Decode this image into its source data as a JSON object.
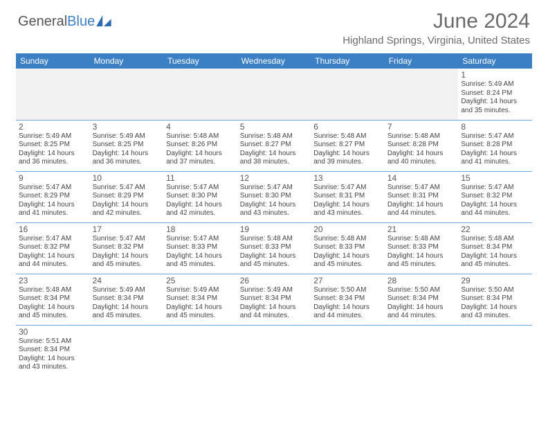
{
  "logo": {
    "text1": "General",
    "text2": "Blue"
  },
  "title": "June 2024",
  "location": "Highland Springs, Virginia, United States",
  "colors": {
    "header_bg": "#3b7fc4",
    "header_text": "#ffffff",
    "divider": "#6fa4d6",
    "blank_bg": "#f2f2f2",
    "text": "#444444",
    "title_text": "#6a6a6a"
  },
  "weekdays": [
    "Sunday",
    "Monday",
    "Tuesday",
    "Wednesday",
    "Thursday",
    "Friday",
    "Saturday"
  ],
  "days": {
    "1": {
      "sunrise": "5:49 AM",
      "sunset": "8:24 PM",
      "daylight": "14 hours and 35 minutes."
    },
    "2": {
      "sunrise": "5:49 AM",
      "sunset": "8:25 PM",
      "daylight": "14 hours and 36 minutes."
    },
    "3": {
      "sunrise": "5:49 AM",
      "sunset": "8:25 PM",
      "daylight": "14 hours and 36 minutes."
    },
    "4": {
      "sunrise": "5:48 AM",
      "sunset": "8:26 PM",
      "daylight": "14 hours and 37 minutes."
    },
    "5": {
      "sunrise": "5:48 AM",
      "sunset": "8:27 PM",
      "daylight": "14 hours and 38 minutes."
    },
    "6": {
      "sunrise": "5:48 AM",
      "sunset": "8:27 PM",
      "daylight": "14 hours and 39 minutes."
    },
    "7": {
      "sunrise": "5:48 AM",
      "sunset": "8:28 PM",
      "daylight": "14 hours and 40 minutes."
    },
    "8": {
      "sunrise": "5:47 AM",
      "sunset": "8:28 PM",
      "daylight": "14 hours and 41 minutes."
    },
    "9": {
      "sunrise": "5:47 AM",
      "sunset": "8:29 PM",
      "daylight": "14 hours and 41 minutes."
    },
    "10": {
      "sunrise": "5:47 AM",
      "sunset": "8:29 PM",
      "daylight": "14 hours and 42 minutes."
    },
    "11": {
      "sunrise": "5:47 AM",
      "sunset": "8:30 PM",
      "daylight": "14 hours and 42 minutes."
    },
    "12": {
      "sunrise": "5:47 AM",
      "sunset": "8:30 PM",
      "daylight": "14 hours and 43 minutes."
    },
    "13": {
      "sunrise": "5:47 AM",
      "sunset": "8:31 PM",
      "daylight": "14 hours and 43 minutes."
    },
    "14": {
      "sunrise": "5:47 AM",
      "sunset": "8:31 PM",
      "daylight": "14 hours and 44 minutes."
    },
    "15": {
      "sunrise": "5:47 AM",
      "sunset": "8:32 PM",
      "daylight": "14 hours and 44 minutes."
    },
    "16": {
      "sunrise": "5:47 AM",
      "sunset": "8:32 PM",
      "daylight": "14 hours and 44 minutes."
    },
    "17": {
      "sunrise": "5:47 AM",
      "sunset": "8:32 PM",
      "daylight": "14 hours and 45 minutes."
    },
    "18": {
      "sunrise": "5:47 AM",
      "sunset": "8:33 PM",
      "daylight": "14 hours and 45 minutes."
    },
    "19": {
      "sunrise": "5:48 AM",
      "sunset": "8:33 PM",
      "daylight": "14 hours and 45 minutes."
    },
    "20": {
      "sunrise": "5:48 AM",
      "sunset": "8:33 PM",
      "daylight": "14 hours and 45 minutes."
    },
    "21": {
      "sunrise": "5:48 AM",
      "sunset": "8:33 PM",
      "daylight": "14 hours and 45 minutes."
    },
    "22": {
      "sunrise": "5:48 AM",
      "sunset": "8:34 PM",
      "daylight": "14 hours and 45 minutes."
    },
    "23": {
      "sunrise": "5:48 AM",
      "sunset": "8:34 PM",
      "daylight": "14 hours and 45 minutes."
    },
    "24": {
      "sunrise": "5:49 AM",
      "sunset": "8:34 PM",
      "daylight": "14 hours and 45 minutes."
    },
    "25": {
      "sunrise": "5:49 AM",
      "sunset": "8:34 PM",
      "daylight": "14 hours and 45 minutes."
    },
    "26": {
      "sunrise": "5:49 AM",
      "sunset": "8:34 PM",
      "daylight": "14 hours and 44 minutes."
    },
    "27": {
      "sunrise": "5:50 AM",
      "sunset": "8:34 PM",
      "daylight": "14 hours and 44 minutes."
    },
    "28": {
      "sunrise": "5:50 AM",
      "sunset": "8:34 PM",
      "daylight": "14 hours and 44 minutes."
    },
    "29": {
      "sunrise": "5:50 AM",
      "sunset": "8:34 PM",
      "daylight": "14 hours and 43 minutes."
    },
    "30": {
      "sunrise": "5:51 AM",
      "sunset": "8:34 PM",
      "daylight": "14 hours and 43 minutes."
    }
  },
  "labels": {
    "sunrise": "Sunrise: ",
    "sunset": "Sunset: ",
    "daylight": "Daylight: "
  },
  "layout": [
    [
      null,
      null,
      null,
      null,
      null,
      null,
      "1"
    ],
    [
      "2",
      "3",
      "4",
      "5",
      "6",
      "7",
      "8"
    ],
    [
      "9",
      "10",
      "11",
      "12",
      "13",
      "14",
      "15"
    ],
    [
      "16",
      "17",
      "18",
      "19",
      "20",
      "21",
      "22"
    ],
    [
      "23",
      "24",
      "25",
      "26",
      "27",
      "28",
      "29"
    ],
    [
      "30",
      null,
      null,
      null,
      null,
      null,
      null
    ]
  ]
}
